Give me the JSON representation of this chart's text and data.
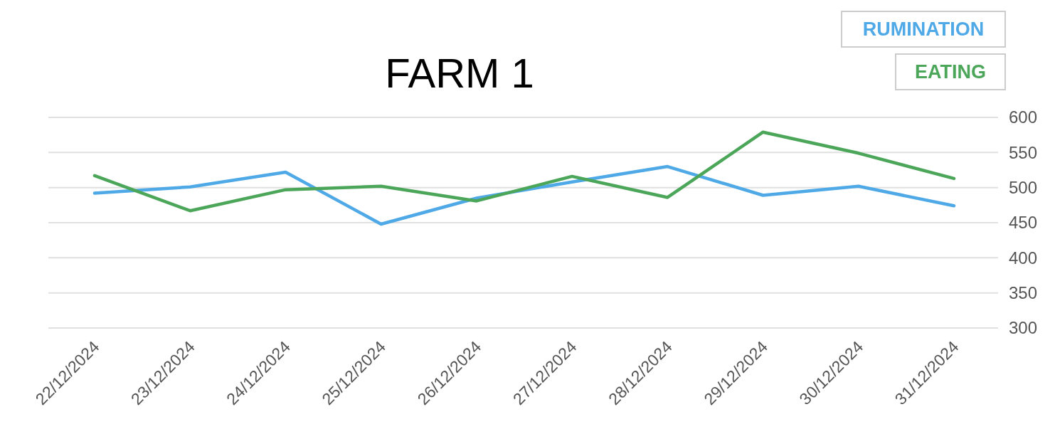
{
  "chart_data": {
    "type": "line",
    "title": "FARM 1",
    "categories": [
      "22/12/2024",
      "23/12/2024",
      "24/12/2024",
      "25/12/2024",
      "26/12/2024",
      "27/12/2024",
      "28/12/2024",
      "29/12/2024",
      "30/12/2024",
      "31/12/2024"
    ],
    "series": [
      {
        "name": "RUMINATION",
        "color": "#4ea9e6",
        "values": [
          492,
          501,
          522,
          448,
          485,
          508,
          530,
          489,
          502,
          474
        ]
      },
      {
        "name": "EATING",
        "color": "#4ca65a",
        "values": [
          517,
          467,
          497,
          502,
          481,
          516,
          486,
          579,
          549,
          513
        ]
      }
    ],
    "ylim": [
      300,
      600
    ],
    "yticks": [
      300,
      350,
      400,
      450,
      500,
      550,
      600
    ],
    "grid": "y",
    "legend": "top right"
  }
}
